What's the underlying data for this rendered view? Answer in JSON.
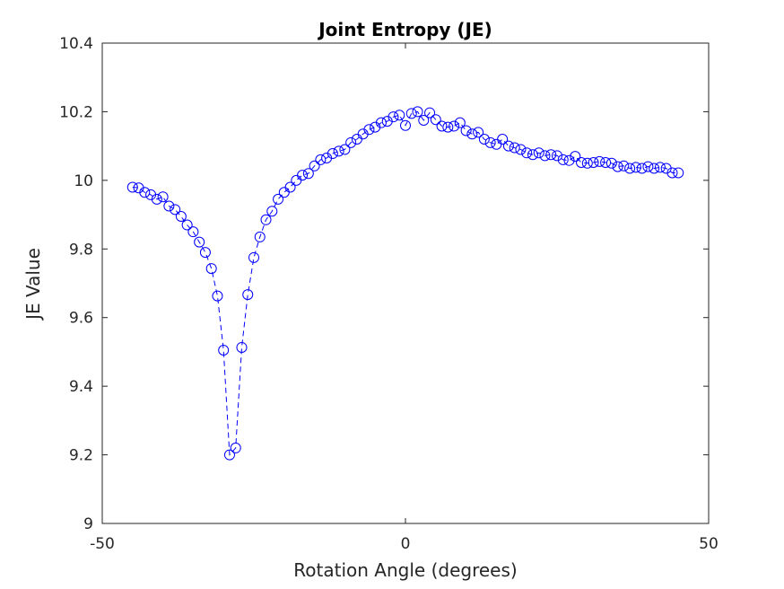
{
  "chart_data": {
    "type": "scatter",
    "title": "Joint Entropy (JE)",
    "xlabel": "Rotation Angle (degrees)",
    "ylabel": "JE Value",
    "xlim": [
      -50,
      50
    ],
    "ylim": [
      9,
      10.4
    ],
    "xticks": [
      -50,
      0,
      50
    ],
    "xtick_labels": [
      "-50",
      "0",
      "50"
    ],
    "yticks": [
      9,
      9.2,
      9.4,
      9.6,
      9.8,
      10,
      10.2,
      10.4
    ],
    "ytick_labels": [
      "9",
      "9.2",
      "9.4",
      "9.6",
      "9.8",
      "10",
      "10.2",
      "10.4"
    ],
    "grid": false,
    "legend": "none",
    "series": [
      {
        "line_style": "dashed",
        "marker": "circle",
        "color": "#0000ff",
        "x": [
          -45,
          -44,
          -43,
          -42,
          -41,
          -40,
          -39,
          -38,
          -37,
          -36,
          -35,
          -34,
          -33,
          -32,
          -31,
          -30,
          -29,
          -28,
          -27,
          -26,
          -25,
          -24,
          -23,
          -22,
          -21,
          -20,
          -19,
          -18,
          -17,
          -16,
          -15,
          -14,
          -13,
          -12,
          -11,
          -10,
          -9,
          -8,
          -7,
          -6,
          -5,
          -4,
          -3,
          -2,
          -1,
          0,
          1,
          2,
          3,
          4,
          5,
          6,
          7,
          8,
          9,
          10,
          11,
          12,
          13,
          14,
          15,
          16,
          17,
          18,
          19,
          20,
          21,
          22,
          23,
          24,
          25,
          26,
          27,
          28,
          29,
          30,
          31,
          32,
          33,
          34,
          35,
          36,
          37,
          38,
          39,
          40,
          41,
          42,
          43,
          44,
          45
        ],
        "y": [
          9.98,
          9.978,
          9.965,
          9.958,
          9.945,
          9.952,
          9.925,
          9.915,
          9.895,
          9.87,
          9.85,
          9.82,
          9.79,
          9.743,
          9.663,
          9.505,
          9.2,
          9.22,
          9.513,
          9.667,
          9.775,
          9.835,
          9.885,
          9.91,
          9.945,
          9.965,
          9.98,
          10.0,
          10.015,
          10.02,
          10.042,
          10.06,
          10.065,
          10.078,
          10.085,
          10.09,
          10.11,
          10.12,
          10.135,
          10.148,
          10.155,
          10.168,
          10.172,
          10.185,
          10.19,
          10.16,
          10.195,
          10.2,
          10.175,
          10.197,
          10.177,
          10.158,
          10.155,
          10.158,
          10.168,
          10.145,
          10.135,
          10.14,
          10.12,
          10.11,
          10.105,
          10.12,
          10.1,
          10.095,
          10.09,
          10.08,
          10.075,
          10.08,
          10.072,
          10.075,
          10.072,
          10.06,
          10.058,
          10.07,
          10.052,
          10.05,
          10.052,
          10.055,
          10.052,
          10.05,
          10.04,
          10.042,
          10.035,
          10.038,
          10.035,
          10.04,
          10.035,
          10.038,
          10.035,
          10.022,
          10.022
        ]
      }
    ]
  }
}
